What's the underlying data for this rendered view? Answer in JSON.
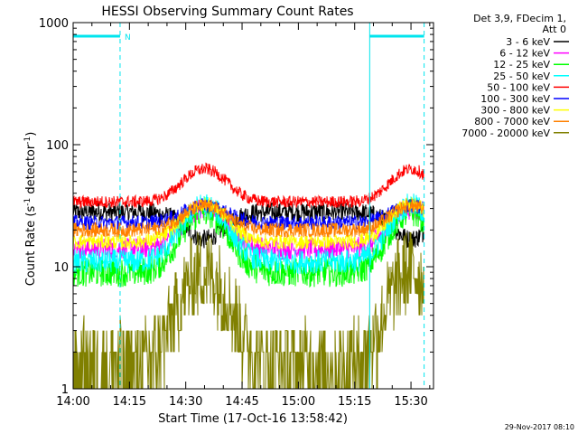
{
  "chart_data": {
    "type": "line",
    "title": "HESSI Observing Summary Count Rates",
    "xlabel": "Start Time (17-Oct-16 13:58:42)",
    "ylabel_main": "Count Rate (s",
    "ylabel_sup1": "-1",
    "ylabel_mid": " detector",
    "ylabel_sup2": "-1",
    "ylabel_end": ")",
    "y_scale": "log",
    "ylim": [
      1,
      1000
    ],
    "xlim_minutes": [
      0,
      96
    ],
    "x_ticks": [
      {
        "label": "14:00",
        "minute": 0
      },
      {
        "label": "14:15",
        "minute": 15
      },
      {
        "label": "14:30",
        "minute": 30
      },
      {
        "label": "14:45",
        "minute": 45
      },
      {
        "label": "15:00",
        "minute": 60
      },
      {
        "label": "15:15",
        "minute": 75
      },
      {
        "label": "15:30",
        "minute": 90
      }
    ],
    "y_ticks": [
      {
        "label": "1",
        "value": 1
      },
      {
        "label": "10",
        "value": 10
      },
      {
        "label": "100",
        "value": 100
      },
      {
        "label": "1000",
        "value": 1000
      }
    ],
    "legend_header": [
      "Det 3,9, FDecim 1,",
      "Att 0"
    ],
    "legend_position": "top-right outside plot",
    "series": [
      {
        "name": "3 - 6 keV",
        "color": "#000000",
        "base": 28,
        "amp": 0.6,
        "noise": 0.08
      },
      {
        "name": "6 - 12 keV",
        "color": "#ff00ff",
        "base": 14,
        "amp": 1.6,
        "noise": 0.09
      },
      {
        "name": "12 - 25 keV",
        "color": "#00ff00",
        "base": 9,
        "amp": 2.1,
        "noise": 0.12
      },
      {
        "name": "25 - 50 keV",
        "color": "#00ffff",
        "base": 11,
        "amp": 2.0,
        "noise": 0.1
      },
      {
        "name": "50 - 100 keV",
        "color": "#ff0000",
        "base": 34,
        "amp": 1.45,
        "noise": 0.05
      },
      {
        "name": "100 - 300 keV",
        "color": "#0000ff",
        "base": 23,
        "amp": 1.2,
        "noise": 0.06
      },
      {
        "name": "300 - 800 keV",
        "color": "#ffff00",
        "base": 16,
        "amp": 1.55,
        "noise": 0.06
      },
      {
        "name": "800 - 7000 keV",
        "color": "#ff8000",
        "base": 20,
        "amp": 1.3,
        "noise": 0.06
      },
      {
        "name": "7000 - 20000 keV",
        "color": "#808000",
        "base": 1.6,
        "amp": 3.5,
        "noise": 0.35
      }
    ],
    "peaks_minutes": [
      [
        35,
        7.5
      ],
      [
        90,
        7.0
      ]
    ],
    "markers": {
      "flag_label": "N",
      "flag_segments_minutes": [
        [
          0,
          12.5
        ],
        [
          79,
          93.5
        ]
      ],
      "flag_value": 800,
      "solid_lines_minutes": [
        0,
        79
      ],
      "dashed_lines_minutes": [
        12.5,
        93.5
      ],
      "color": "#00e5ee"
    }
  },
  "footer_date": "29-Nov-2017 08:10"
}
